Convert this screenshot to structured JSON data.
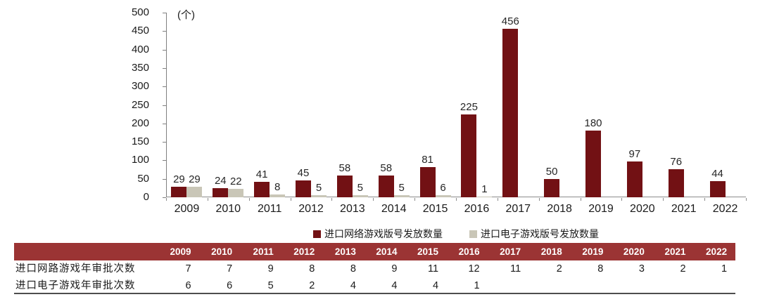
{
  "chart_data": {
    "type": "bar",
    "unit_label": "(个)",
    "categories": [
      "2009",
      "2010",
      "2011",
      "2012",
      "2013",
      "2014",
      "2015",
      "2016",
      "2017",
      "2018",
      "2019",
      "2020",
      "2021",
      "2022"
    ],
    "series": [
      {
        "name": "进口网络游戏版号发放数量",
        "color": "#721114",
        "values": [
          29,
          24,
          41,
          45,
          58,
          58,
          81,
          225,
          456,
          50,
          180,
          97,
          76,
          44
        ]
      },
      {
        "name": "进口电子游戏版号发放数量",
        "color": "#C9C6B7",
        "values": [
          29,
          22,
          8,
          5,
          5,
          5,
          6,
          1,
          null,
          null,
          null,
          null,
          null,
          null
        ]
      }
    ],
    "ylim": [
      0,
      500
    ],
    "ytick_step": 50,
    "grid": false,
    "legend_position": "bottom",
    "axis_color": "#808080"
  },
  "table": {
    "header_bg": "#9B3434",
    "header_text_color": "#ffffff",
    "years": [
      "2009",
      "2010",
      "2011",
      "2012",
      "2013",
      "2014",
      "2015",
      "2016",
      "2017",
      "2018",
      "2019",
      "2020",
      "2021",
      "2022"
    ],
    "rows": [
      {
        "label": "进口网路游戏年审批次数",
        "values": [
          "7",
          "7",
          "9",
          "8",
          "8",
          "9",
          "11",
          "12",
          "11",
          "2",
          "8",
          "3",
          "2",
          "1"
        ]
      },
      {
        "label": "进口电子游戏年审批次数",
        "values": [
          "6",
          "6",
          "5",
          "2",
          "4",
          "4",
          "4",
          "1",
          "",
          "",
          "",
          "",
          "",
          ""
        ]
      }
    ]
  }
}
